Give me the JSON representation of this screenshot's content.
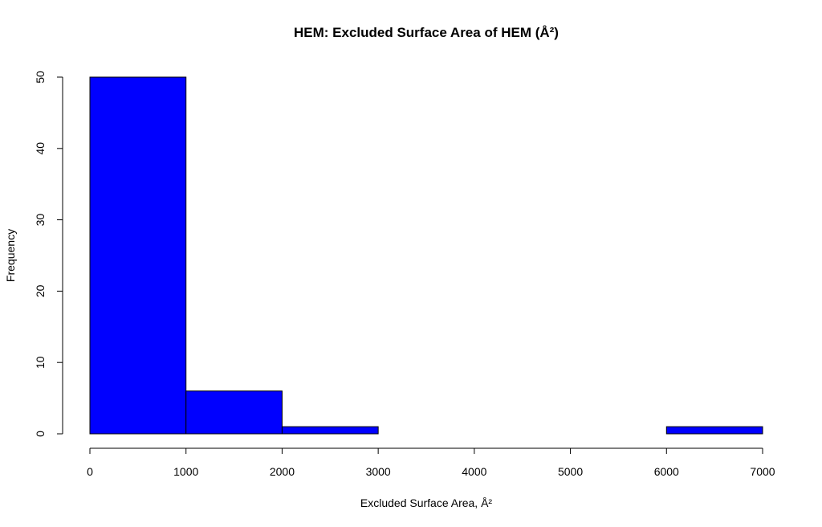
{
  "chart_data": {
    "type": "bar",
    "title": "HEM: Excluded Surface Area of HEM (Å²)",
    "xlabel": "Excluded Surface Area, Å²",
    "ylabel": "Frequency",
    "bins": [
      {
        "start": 0,
        "end": 1000,
        "count": 50
      },
      {
        "start": 1000,
        "end": 2000,
        "count": 6
      },
      {
        "start": 2000,
        "end": 3000,
        "count": 1
      },
      {
        "start": 3000,
        "end": 4000,
        "count": 0
      },
      {
        "start": 4000,
        "end": 5000,
        "count": 0
      },
      {
        "start": 5000,
        "end": 6000,
        "count": 0
      },
      {
        "start": 6000,
        "end": 7000,
        "count": 1
      }
    ],
    "xlim": [
      0,
      7000
    ],
    "ylim": [
      0,
      50
    ],
    "x_ticks": [
      "0",
      "1000",
      "2000",
      "3000",
      "4000",
      "5000",
      "6000",
      "7000"
    ],
    "y_ticks": [
      "0",
      "10",
      "20",
      "30",
      "40",
      "50"
    ],
    "bar_color": "#0000ff",
    "border_color": "#000000",
    "grid": false,
    "legend": "none"
  }
}
